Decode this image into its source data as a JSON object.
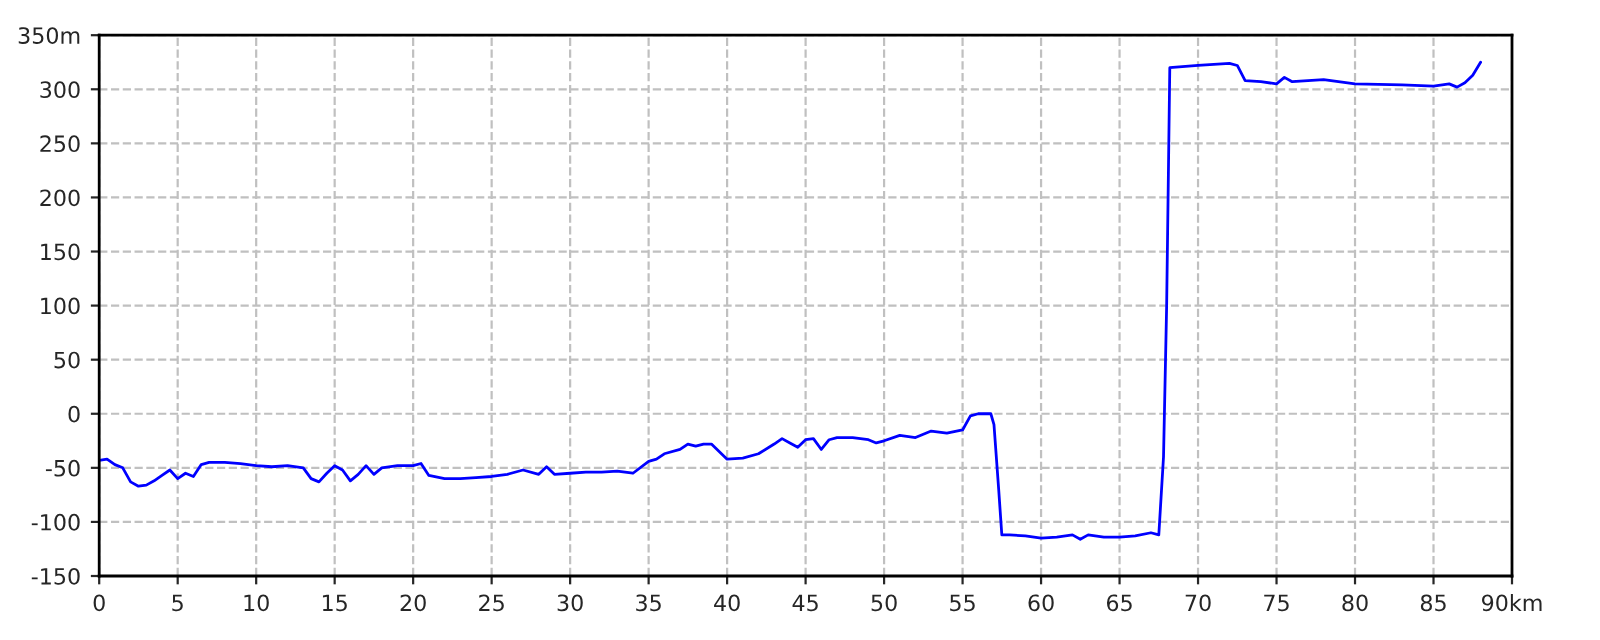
{
  "chart_data": {
    "type": "line",
    "x": [
      0,
      0.5,
      1,
      1.5,
      2,
      2.5,
      3,
      3.5,
      4,
      4.5,
      5,
      5.5,
      6,
      6.5,
      7,
      8,
      9,
      10,
      11,
      12,
      13,
      13.5,
      14,
      14.5,
      15,
      15.5,
      16,
      16.5,
      17,
      17.5,
      18,
      19,
      20,
      20.5,
      21,
      22,
      23,
      24,
      25,
      26,
      27,
      28,
      28.5,
      29,
      30,
      31,
      32,
      33,
      34,
      35,
      35.5,
      36,
      37,
      37.5,
      38,
      38.5,
      39,
      40,
      41,
      42,
      43,
      43.5,
      44,
      44.5,
      45,
      45.5,
      46,
      46.5,
      47,
      48,
      49,
      49.5,
      50,
      51,
      52,
      53,
      54,
      55,
      55.5,
      56,
      56.8,
      57,
      57.3,
      57.5,
      58,
      59,
      60,
      61,
      62,
      62.5,
      63,
      64,
      65,
      66,
      67,
      67.5,
      67.8,
      68,
      68.2,
      70,
      71,
      72,
      72.5,
      73,
      74,
      75,
      75.5,
      76,
      78,
      80,
      83,
      85,
      86,
      86.5,
      87,
      87.5,
      88
    ],
    "series": [
      {
        "color": "#0000ff",
        "values": [
          -43,
          -42,
          -47,
          -50,
          -63,
          -67,
          -66,
          -62,
          -57,
          -52,
          -60,
          -55,
          -58,
          -47,
          -45,
          -45,
          -46,
          -48,
          -49,
          -48,
          -50,
          -60,
          -63,
          -55,
          -48,
          -52,
          -62,
          -56,
          -48,
          -56,
          -50,
          -48,
          -48,
          -46,
          -57,
          -60,
          -60,
          -59,
          -58,
          -56,
          -52,
          -56,
          -49,
          -56,
          -55,
          -54,
          -54,
          -53,
          -55,
          -44,
          -42,
          -37,
          -33,
          -28,
          -30,
          -28,
          -28,
          -42,
          -41,
          -37,
          -28,
          -23,
          -27,
          -31,
          -24,
          -23,
          -33,
          -24,
          -22,
          -22,
          -24,
          -27,
          -25,
          -20,
          -22,
          -16,
          -18,
          -15,
          -2,
          0,
          0,
          -10,
          -70,
          -112,
          -112,
          -113,
          -115,
          -114,
          -112,
          -116,
          -112,
          -114,
          -114,
          -113,
          -110,
          -112,
          -40,
          100,
          320,
          322,
          323,
          324,
          322,
          308,
          307,
          305,
          311,
          307,
          309,
          305,
          304,
          303,
          305,
          302,
          306,
          313,
          325
        ]
      }
    ],
    "xlim": [
      0,
      90
    ],
    "xticks": [
      0,
      5,
      10,
      15,
      20,
      25,
      30,
      35,
      40,
      45,
      50,
      55,
      60,
      65,
      70,
      75,
      80,
      85,
      {
        "value": 90,
        "label": "90km"
      }
    ],
    "ylim": [
      -150,
      350
    ],
    "yticks": [
      -150,
      -100,
      -50,
      0,
      50,
      100,
      150,
      200,
      250,
      300,
      {
        "value": 350,
        "label": "350m"
      }
    ],
    "grid": true,
    "line_style": "solid",
    "marker": "none"
  }
}
